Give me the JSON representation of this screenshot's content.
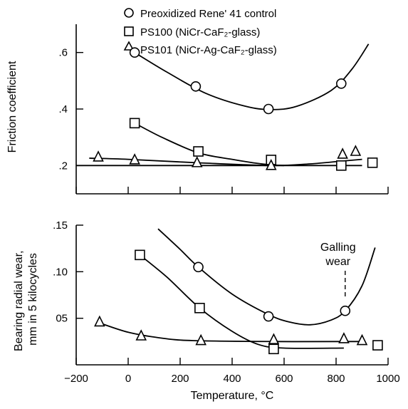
{
  "chart_data": [
    {
      "type": "scatter",
      "ylabel": "Friction coefficient",
      "xlim": [
        -200,
        1000
      ],
      "ylim": [
        0.1,
        0.7
      ],
      "y_ticks": [
        ".2",
        ".4",
        ".6"
      ],
      "y_tick_values": [
        0.2,
        0.4,
        0.6
      ],
      "legend": {
        "placement": "top",
        "entries": [
          {
            "marker": "circle",
            "label": "Preoxidized Rene' 41 control"
          },
          {
            "marker": "square",
            "label": "PS100 (NiCr-CaF₂-glass)"
          },
          {
            "marker": "triangle",
            "label": "PS101 (NiCr-Ag-CaF₂-glass)"
          }
        ]
      },
      "series": [
        {
          "marker": "circle",
          "points": [
            [
              25,
              0.6
            ],
            [
              260,
              0.48
            ],
            [
              540,
              0.4
            ],
            [
              820,
              0.49
            ]
          ],
          "fit": [
            [
              25,
              0.6
            ],
            [
              150,
              0.53
            ],
            [
              300,
              0.455
            ],
            [
              450,
              0.41
            ],
            [
              550,
              0.398
            ],
            [
              650,
              0.41
            ],
            [
              780,
              0.465
            ],
            [
              860,
              0.54
            ],
            [
              925,
              0.63
            ]
          ]
        },
        {
          "marker": "square",
          "points": [
            [
              25,
              0.35
            ],
            [
              270,
              0.25
            ],
            [
              550,
              0.22
            ],
            [
              820,
              0.2
            ],
            [
              940,
              0.21
            ]
          ],
          "fit": [
            [
              25,
              0.35
            ],
            [
              130,
              0.3
            ],
            [
              270,
              0.245
            ],
            [
              400,
              0.222
            ],
            [
              520,
              0.205
            ],
            [
              600,
              0.2
            ]
          ]
        },
        {
          "marker": "triangle",
          "points": [
            [
              -115,
              0.23
            ],
            [
              25,
              0.22
            ],
            [
              265,
              0.21
            ],
            [
              550,
              0.2
            ],
            [
              825,
              0.24
            ],
            [
              875,
              0.25
            ]
          ],
          "fit": [
            [
              -150,
              0.226
            ],
            [
              0,
              0.222
            ],
            [
              265,
              0.21
            ],
            [
              550,
              0.2
            ],
            [
              700,
              0.206
            ],
            [
              825,
              0.216
            ],
            [
              900,
              0.222
            ]
          ]
        },
        {
          "marker": "none",
          "points": [],
          "fit": [
            [
              -200,
              0.2
            ],
            [
              900,
              0.2
            ]
          ]
        }
      ]
    },
    {
      "type": "scatter",
      "ylabel": "Bearing radial wear, mm in 5 kilocycles",
      "xlabel": "Temperature, °C",
      "xlim": [
        -200,
        1000
      ],
      "ylim": [
        0,
        0.15
      ],
      "x_ticks": [
        "−200",
        "0",
        "200",
        "400",
        "600",
        "800",
        "1000"
      ],
      "x_tick_values": [
        -200,
        0,
        200,
        400,
        600,
        800,
        1000
      ],
      "y_ticks": [
        "05",
        ".10",
        ".15"
      ],
      "y_tick_values": [
        0.05,
        0.1,
        0.15
      ],
      "annotation": "Galling wear",
      "annotation_x": 835,
      "series": [
        {
          "marker": "circle",
          "points": [
            [
              270,
              0.105
            ],
            [
              540,
              0.052
            ],
            [
              835,
              0.058
            ]
          ],
          "fit": [
            [
              115,
              0.146
            ],
            [
              200,
              0.124
            ],
            [
              270,
              0.105
            ],
            [
              400,
              0.076
            ],
            [
              540,
              0.054
            ],
            [
              620,
              0.046
            ],
            [
              700,
              0.043
            ],
            [
              780,
              0.048
            ],
            [
              835,
              0.058
            ],
            [
              900,
              0.085
            ],
            [
              950,
              0.126
            ]
          ]
        },
        {
          "marker": "square",
          "points": [
            [
              45,
              0.118
            ],
            [
              275,
              0.061
            ],
            [
              560,
              0.017
            ],
            [
              960,
              0.021
            ]
          ],
          "fit": [
            [
              45,
              0.118
            ],
            [
              150,
              0.094
            ],
            [
              275,
              0.061
            ],
            [
              400,
              0.036
            ],
            [
              500,
              0.022
            ],
            [
              600,
              0.018
            ],
            [
              830,
              0.018
            ]
          ]
        },
        {
          "marker": "triangle",
          "points": [
            [
              -110,
              0.046
            ],
            [
              50,
              0.031
            ],
            [
              280,
              0.026
            ],
            [
              560,
              0.027
            ],
            [
              830,
              0.028
            ],
            [
              900,
              0.026
            ]
          ],
          "fit": [
            [
              -110,
              0.045
            ],
            [
              0,
              0.035
            ],
            [
              120,
              0.029
            ],
            [
              250,
              0.026
            ],
            [
              560,
              0.025
            ],
            [
              830,
              0.025
            ],
            [
              900,
              0.025
            ]
          ]
        }
      ]
    }
  ]
}
